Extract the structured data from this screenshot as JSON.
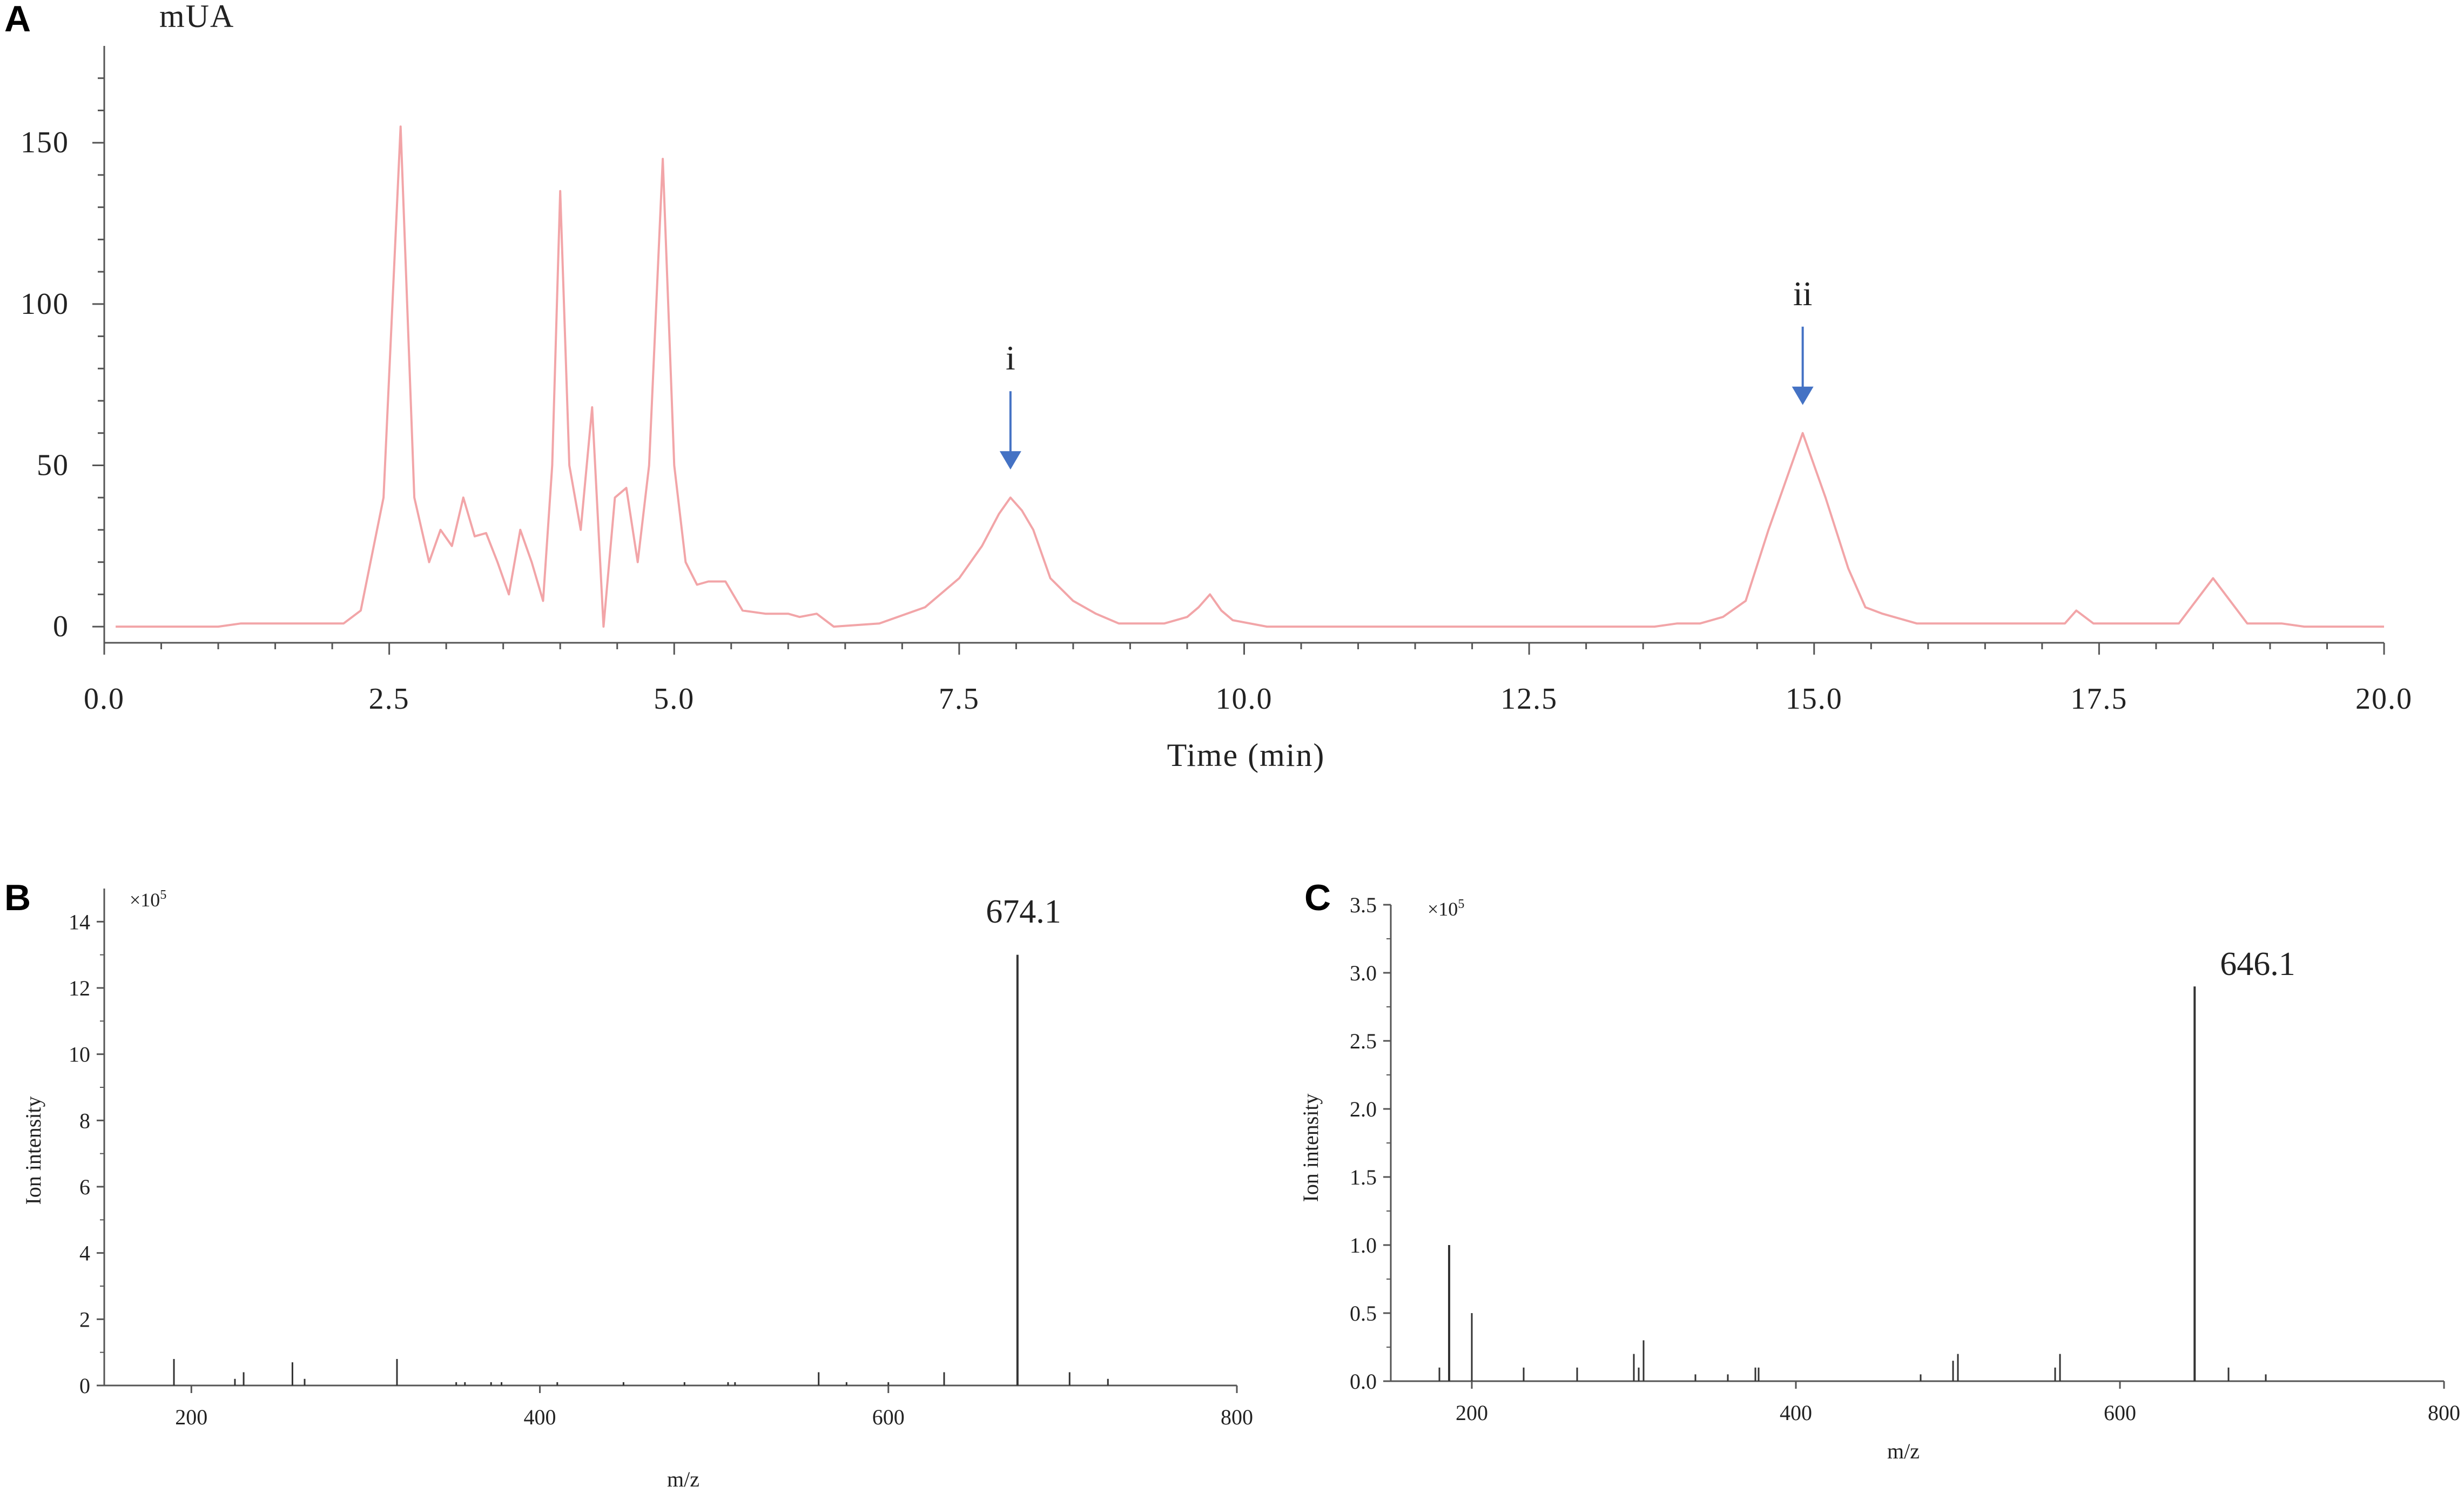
{
  "colors": {
    "chromatogram_line": "#f2a5a8",
    "arrow": "#4472c4",
    "axis": "#555555",
    "spectrum_line": "#333333"
  },
  "chart_data": [
    {
      "panel": "A",
      "type": "line",
      "ylabel_top": "mUA",
      "xlabel": "Time (min)",
      "xlim": [
        0,
        20
      ],
      "ylim": [
        -5,
        180
      ],
      "xticks": [
        "0.0",
        "2.5",
        "5.0",
        "7.5",
        "10.0",
        "12.5",
        "15.0",
        "17.5",
        "20.0"
      ],
      "yticks": [
        "0",
        "50",
        "100",
        "150"
      ],
      "annotations": [
        {
          "label": "i",
          "x": 7.95,
          "y": 40
        },
        {
          "label": "ii",
          "x": 14.9,
          "y": 60
        }
      ],
      "series": [
        {
          "x": [
            0.1,
            1.0,
            1.2,
            2.1,
            2.25,
            2.45,
            2.6,
            2.72,
            2.85,
            2.95,
            3.05,
            3.15,
            3.25,
            3.35,
            3.45,
            3.55,
            3.65,
            3.75,
            3.85,
            3.93,
            4.0,
            4.08,
            4.18,
            4.28,
            4.38,
            4.48,
            4.58,
            4.68,
            4.78,
            4.9,
            5.0,
            5.1,
            5.2,
            5.3,
            5.45,
            5.6,
            5.8,
            6.0,
            6.1,
            6.25,
            6.4,
            6.8,
            7.2,
            7.5,
            7.7,
            7.85,
            7.95,
            8.05,
            8.15,
            8.3,
            8.5,
            8.7,
            8.9,
            9.3,
            9.5,
            9.6,
            9.7,
            9.8,
            9.9,
            10.2,
            13.6,
            13.8,
            14.0,
            14.2,
            14.4,
            14.6,
            14.9,
            15.1,
            15.3,
            15.45,
            15.6,
            15.9,
            17.0,
            17.2,
            17.3,
            17.45,
            17.8,
            18.2,
            18.5,
            18.8,
            19.1,
            19.3,
            20.0
          ],
          "y": [
            0,
            0,
            1,
            1,
            5,
            40,
            155,
            40,
            20,
            30,
            25,
            40,
            28,
            29,
            20,
            10,
            30,
            20,
            8,
            50,
            135,
            50,
            30,
            68,
            0,
            40,
            43,
            20,
            50,
            145,
            50,
            20,
            13,
            14,
            14,
            5,
            4,
            4,
            3,
            4,
            0,
            1,
            6,
            15,
            25,
            35,
            40,
            36,
            30,
            15,
            8,
            4,
            1,
            1,
            3,
            6,
            10,
            5,
            2,
            0,
            0,
            1,
            1,
            3,
            8,
            30,
            60,
            40,
            18,
            6,
            4,
            1,
            1,
            1,
            5,
            1,
            1,
            1,
            15,
            1,
            1,
            0,
            0
          ]
        }
      ]
    },
    {
      "panel": "B",
      "type": "bar",
      "xlabel": "m/z",
      "ylabel": "Ion intensity",
      "scale_base": "×10",
      "scale_exp": "5",
      "xlim": [
        150,
        800
      ],
      "ylim": [
        0,
        15
      ],
      "xticks": [
        "200",
        "400",
        "600",
        "800"
      ],
      "yticks": [
        "0",
        "2",
        "4",
        "6",
        "8",
        "10",
        "12",
        "14"
      ],
      "peak_label": "674.1",
      "x": [
        190,
        225,
        230,
        258,
        265,
        318,
        352,
        357,
        372,
        378,
        410,
        448,
        483,
        508,
        512,
        560,
        576,
        600,
        632,
        674.1,
        704,
        726
      ],
      "values": [
        0.8,
        0.2,
        0.4,
        0.7,
        0.2,
        0.8,
        0.1,
        0.1,
        0.1,
        0.1,
        0.1,
        0.1,
        0.1,
        0.1,
        0.1,
        0.4,
        0.1,
        0.1,
        0.4,
        13,
        0.4,
        0.2
      ]
    },
    {
      "panel": "C",
      "type": "bar",
      "xlabel": "m/z",
      "ylabel": "Ion intensity",
      "scale_base": "×10",
      "scale_exp": "5",
      "xlim": [
        150,
        800
      ],
      "ylim": [
        0,
        3.5
      ],
      "xticks": [
        "200",
        "400",
        "600",
        "800"
      ],
      "yticks": [
        "0.0",
        "0.5",
        "1.0",
        "1.5",
        "2.0",
        "2.5",
        "3.0",
        "3.5"
      ],
      "peak_label": "646.1",
      "x": [
        180,
        186,
        200,
        232,
        265,
        300,
        303,
        306,
        338,
        358,
        375,
        377,
        477,
        497,
        500,
        560,
        563,
        646.1,
        667,
        690
      ],
      "values": [
        0.1,
        1.0,
        0.5,
        0.1,
        0.1,
        0.2,
        0.1,
        0.3,
        0.05,
        0.05,
        0.1,
        0.1,
        0.05,
        0.15,
        0.2,
        0.1,
        0.2,
        2.9,
        0.1,
        0.05
      ]
    }
  ],
  "panels": {
    "a_label": "A",
    "b_label": "B",
    "c_label": "C"
  }
}
